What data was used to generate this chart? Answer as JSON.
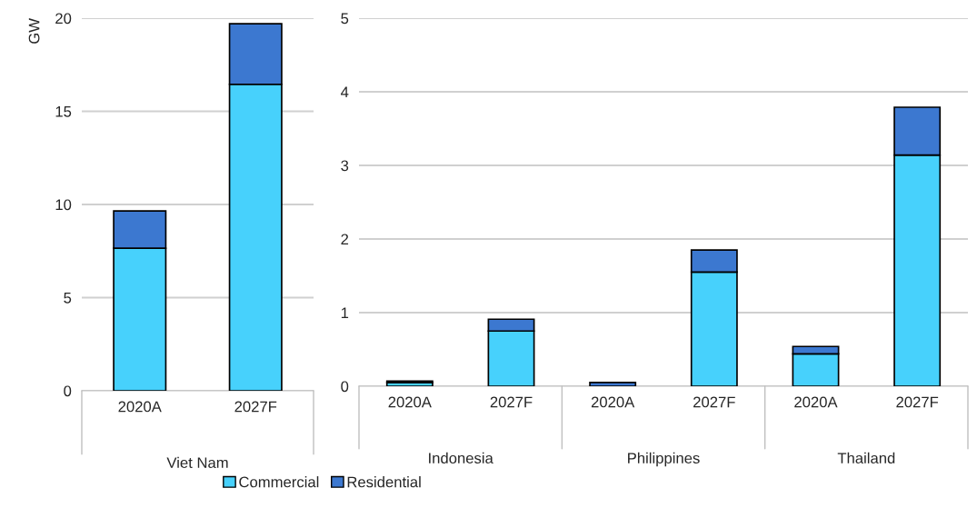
{
  "chart_data": [
    {
      "type": "bar",
      "stacked": true,
      "ylabel": "GW",
      "categories": [
        "2020A",
        "2027F"
      ],
      "ylim": [
        0,
        20
      ],
      "yticks": [
        0,
        5,
        10,
        15,
        20
      ],
      "grid": "y",
      "annotations": [
        "Viet Nam"
      ],
      "series": [
        {
          "color": "#47d1fc",
          "values": [
            7.65,
            16.45
          ]
        },
        {
          "color": "#3c78d0",
          "values": [
            2.0,
            3.25
          ]
        }
      ]
    },
    {
      "type": "bar",
      "stacked": true,
      "categories": [
        "2020A",
        "2027F",
        "2020A",
        "2027F",
        "2020A",
        "2027F"
      ],
      "ylim": [
        0,
        5
      ],
      "yticks": [
        0,
        1,
        2,
        3,
        4,
        5
      ],
      "grid": "y",
      "legend": "bottom",
      "annotations": [
        "Indonesia",
        "Philippines",
        "Thailand"
      ],
      "series": [
        {
          "name": "Commercial",
          "color": "#47d1fc",
          "values": [
            0.05,
            0.75,
            null,
            1.55,
            0.44,
            3.14
          ]
        },
        {
          "name": "Residential",
          "color": "#3c78d0",
          "values": [
            0.02,
            0.16,
            0.05,
            0.3,
            0.1,
            0.65
          ]
        }
      ]
    }
  ]
}
